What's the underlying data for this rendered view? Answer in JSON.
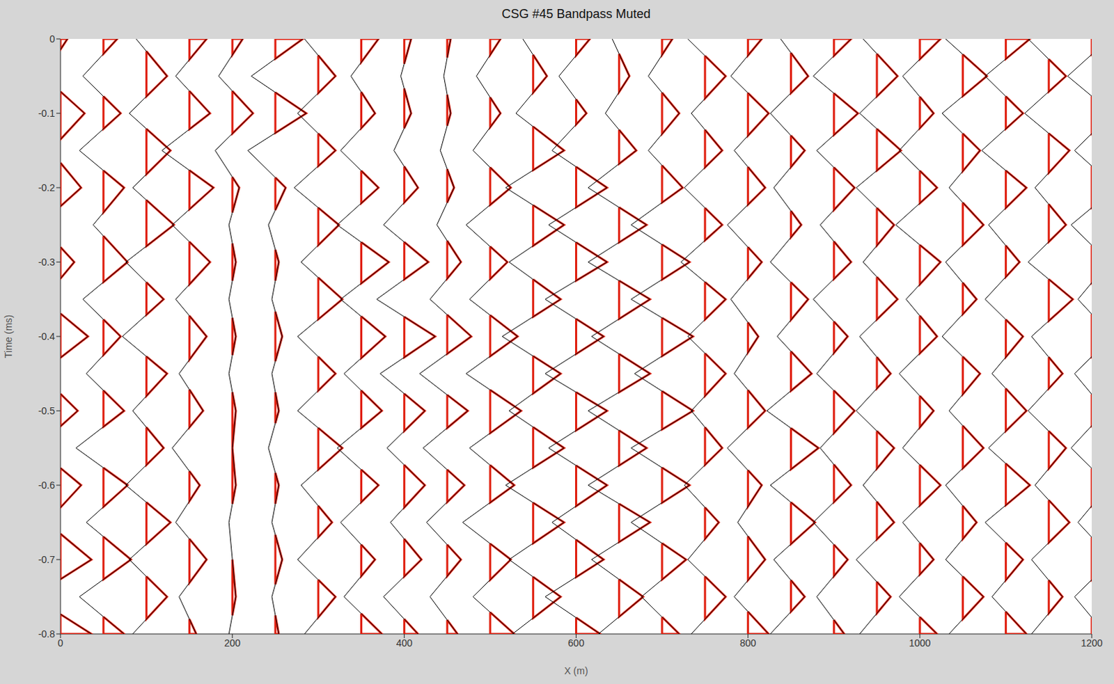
{
  "chart_data": {
    "type": "wiggle",
    "title": "CSG #45 Bandpass Muted",
    "x_label": "X (m)",
    "y_label": "Time (ms)",
    "color": "#e02010",
    "grid": false,
    "xlim": [
      0,
      1200
    ],
    "ylim": [
      -0.8,
      0
    ],
    "xticks": [
      0,
      200,
      400,
      600,
      800,
      1000,
      1200
    ],
    "yticks": [
      0,
      -0.1,
      -0.2,
      -0.3,
      -0.4,
      -0.5,
      -0.6,
      -0.7,
      -0.8
    ],
    "x": [
      0,
      50,
      100,
      150,
      200,
      250,
      300,
      350,
      400,
      450,
      500,
      550,
      600,
      650,
      700,
      750,
      800,
      850,
      900,
      950,
      1000,
      1050,
      1100,
      1150,
      1200
    ],
    "y": [
      0,
      -0.05,
      -0.1,
      -0.15,
      -0.2,
      -0.25,
      -0.3,
      -0.35,
      -0.4,
      -0.45,
      -0.5,
      -0.55,
      -0.6,
      -0.65,
      -0.7,
      -0.75,
      -0.8
    ],
    "values": [
      [
        0.2,
        -0.5,
        0.7,
        -0.3,
        0.6,
        -0.6,
        0.4,
        -0.5,
        0.8,
        -0.6,
        0.5,
        -0.7,
        0.6,
        -0.4,
        0.9,
        -0.8,
        0.9
      ],
      [
        0.4,
        -0.6,
        0.5,
        -0.7,
        0.6,
        -0.3,
        0.7,
        -0.6,
        0.5,
        -0.5,
        0.6,
        -0.8,
        0.7,
        -0.5,
        0.8,
        -0.7,
        0.6
      ],
      [
        -0.3,
        0.6,
        -0.5,
        0.7,
        -0.4,
        0.8,
        -0.6,
        0.5,
        -0.7,
        0.6,
        -0.4,
        0.5,
        -0.6,
        0.7,
        -0.5,
        0.6,
        -0.4
      ],
      [
        0.5,
        -0.4,
        0.6,
        -0.8,
        0.7,
        -0.5,
        0.6,
        -0.4,
        0.5,
        -0.3,
        0.4,
        -0.5,
        0.3,
        -0.4,
        0.5,
        -0.3,
        0.2
      ],
      [
        0.3,
        -0.4,
        0.6,
        -0.5,
        0.2,
        -0.1,
        0.1,
        -0.1,
        0.1,
        -0.1,
        0.1,
        0,
        0.1,
        -0.1,
        0,
        0.1,
        -0.1
      ],
      [
        0.8,
        -0.7,
        0.9,
        -0.8,
        0.3,
        -0.2,
        0.1,
        -0.1,
        0.2,
        -0.1,
        0.1,
        -0.2,
        0.1,
        -0.1,
        0.2,
        -0.1,
        0.1
      ],
      [
        -0.4,
        0.5,
        -0.6,
        0.5,
        -0.7,
        0.6,
        -0.5,
        0.7,
        -0.6,
        0.5,
        -0.6,
        0.7,
        -0.5,
        0.4,
        -0.6,
        0.5,
        -0.4
      ],
      [
        0.5,
        -0.3,
        0.4,
        -0.6,
        0.5,
        -0.7,
        0.8,
        -0.6,
        0.7,
        -0.5,
        0.6,
        -0.7,
        0.5,
        -0.6,
        0.4,
        -0.5,
        0.6
      ],
      [
        0.2,
        -0.1,
        0.2,
        -0.3,
        0.4,
        -0.6,
        0.7,
        -0.8,
        0.9,
        -0.7,
        0.6,
        -0.5,
        0.6,
        -0.4,
        0.5,
        -0.6,
        0.4
      ],
      [
        0.1,
        -0.1,
        0.1,
        -0.2,
        0.2,
        -0.3,
        0.4,
        -0.5,
        0.7,
        -0.8,
        0.6,
        -0.7,
        0.5,
        -0.6,
        0.4,
        -0.5,
        0.3
      ],
      [
        0.3,
        -0.4,
        0.3,
        -0.5,
        0.6,
        -0.7,
        0.5,
        -0.6,
        0.8,
        -0.7,
        0.9,
        -0.6,
        0.7,
        -0.8,
        0.6,
        -0.5,
        0.7
      ],
      [
        -0.3,
        0.4,
        -0.5,
        0.9,
        -0.8,
        0.9,
        -0.7,
        0.8,
        -0.9,
        0.8,
        -0.7,
        0.9,
        -0.8,
        0.9,
        -0.7,
        0.8,
        -0.6
      ],
      [
        0.4,
        -0.5,
        0.3,
        -0.7,
        0.9,
        -0.8,
        0.9,
        -0.9,
        0.8,
        -0.9,
        0.9,
        -0.8,
        0.9,
        -0.7,
        0.8,
        -0.9,
        0.7
      ],
      [
        -0.2,
        0.3,
        -0.4,
        0.5,
        -0.9,
        0.8,
        -0.9,
        0.9,
        -0.8,
        0.9,
        -0.9,
        0.8,
        -0.9,
        0.9,
        -0.8,
        0.7,
        -0.6
      ],
      [
        0.3,
        -0.4,
        0.5,
        -0.4,
        0.6,
        -0.9,
        0.8,
        -0.9,
        0.9,
        -0.8,
        0.9,
        -0.9,
        0.8,
        -0.9,
        0.7,
        -0.6,
        0.5
      ],
      [
        -0.5,
        0.6,
        -0.4,
        0.5,
        -0.6,
        0.5,
        -0.7,
        0.6,
        -0.5,
        0.6,
        -0.4,
        0.5,
        -0.6,
        0.4,
        -0.5,
        0.6,
        -0.4
      ],
      [
        0.4,
        -0.5,
        0.6,
        -0.4,
        0.5,
        -0.6,
        0.4,
        -0.5,
        0.3,
        -0.4,
        0.5,
        -0.6,
        0.4,
        -0.3,
        0.5,
        -0.4,
        0.6
      ],
      [
        -0.3,
        0.5,
        -0.6,
        0.4,
        -0.5,
        0.3,
        -0.6,
        0.5,
        -0.4,
        0.6,
        -0.7,
        0.8,
        -0.6,
        0.7,
        -0.5,
        0.4,
        -0.6
      ],
      [
        0.5,
        -0.6,
        0.7,
        -0.5,
        0.6,
        -0.4,
        0.5,
        -0.6,
        0.4,
        -0.5,
        0.6,
        -0.4,
        0.5,
        -0.6,
        0.4,
        -0.5,
        0.3
      ],
      [
        -0.4,
        0.6,
        -0.5,
        0.7,
        -0.6,
        0.5,
        -0.4,
        0.6,
        -0.5,
        0.4,
        -0.6,
        0.5,
        -0.4,
        0.5,
        -0.6,
        0.4,
        -0.5
      ],
      [
        0.6,
        -0.5,
        0.4,
        -0.6,
        0.5,
        -0.7,
        0.6,
        -0.4,
        0.5,
        -0.6,
        0.4,
        -0.5,
        0.6,
        -0.5,
        0.4,
        -0.6,
        0.5
      ],
      [
        -0.5,
        0.7,
        -0.6,
        0.5,
        -0.4,
        0.6,
        -0.5,
        0.4,
        -0.6,
        0.5,
        -0.4,
        0.6,
        -0.5,
        0.4,
        -0.5,
        0.6,
        -0.4
      ],
      [
        0.7,
        -0.6,
        0.5,
        -0.7,
        0.6,
        -0.5,
        0.4,
        -0.6,
        0.5,
        -0.4,
        0.6,
        -0.5,
        0.7,
        -0.6,
        0.5,
        -0.4,
        0.6
      ],
      [
        -0.6,
        0.5,
        -0.7,
        0.6,
        -0.4,
        0.5,
        -0.6,
        0.7,
        -0.5,
        0.4,
        -0.6,
        0.5,
        -0.4,
        0.6,
        -0.5,
        0.4,
        -0.5
      ],
      [
        0.5,
        -0.7,
        0.6,
        -0.5,
        0.7,
        -0.6,
        0.5,
        -0.4,
        0.6,
        -0.5,
        0.4,
        -0.6,
        0.5,
        -0.4,
        0.6,
        -0.5,
        0.4
      ]
    ]
  }
}
